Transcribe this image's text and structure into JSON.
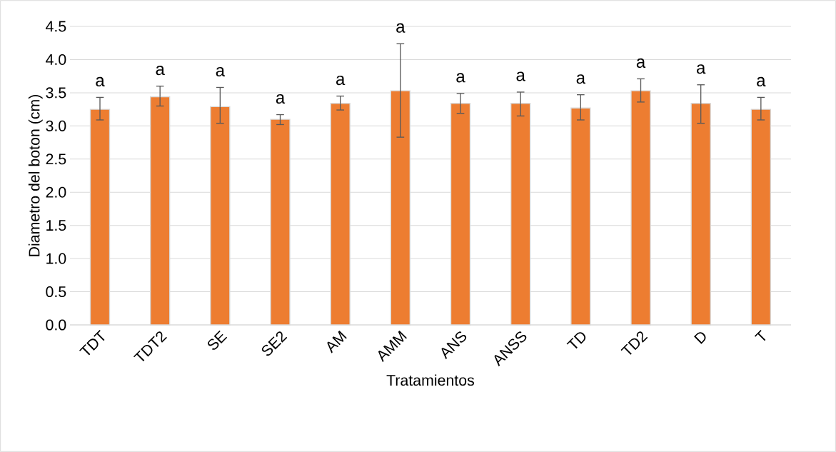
{
  "chart_data": {
    "type": "bar",
    "xlabel": "Tratamientos",
    "ylabel": "Diametro del boton (cm)",
    "categories": [
      "TDT",
      "TDT2",
      "SE",
      "SE2",
      "AM",
      "AMM",
      "ANS",
      "ANSS",
      "TD",
      "TD2",
      "D",
      "T"
    ],
    "values": [
      3.25,
      3.44,
      3.29,
      3.1,
      3.34,
      3.53,
      3.34,
      3.34,
      3.27,
      3.53,
      3.34,
      3.25
    ],
    "errors": [
      [
        3.09,
        3.43
      ],
      [
        3.3,
        3.6
      ],
      [
        3.04,
        3.58
      ],
      [
        3.02,
        3.17
      ],
      [
        3.24,
        3.45
      ],
      [
        2.83,
        4.24
      ],
      [
        3.19,
        3.49
      ],
      [
        3.15,
        3.51
      ],
      [
        3.09,
        3.47
      ],
      [
        3.36,
        3.71
      ],
      [
        3.04,
        3.62
      ],
      [
        3.09,
        3.43
      ]
    ],
    "color": "#ed7d31",
    "ylim": [
      0,
      4.5
    ],
    "yticks": [
      {
        "value": 0,
        "label": "0.0"
      },
      0.5,
      {
        "value": 1,
        "label": "1.0"
      },
      1.5,
      {
        "value": 2,
        "label": "2.0"
      },
      2.5,
      {
        "value": 3,
        "label": "3.0"
      },
      3.5,
      {
        "value": 4,
        "label": "4.0"
      },
      4.5
    ],
    "grid": "y",
    "annotations": [
      "a",
      "a",
      "a",
      "a",
      "a",
      "a",
      "a",
      "a",
      "a",
      "a",
      "a",
      "a"
    ]
  }
}
